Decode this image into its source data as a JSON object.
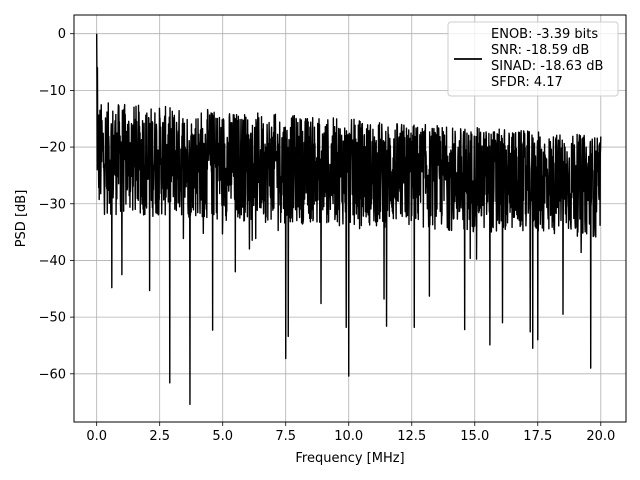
{
  "chart_data": {
    "type": "line",
    "title": "",
    "xlabel": "Frequency [MHz]",
    "ylabel": "PSD [dB]",
    "xlim": [
      -0.9,
      21.0
    ],
    "ylim": [
      -68.5,
      3.3
    ],
    "xticks": [
      0.0,
      2.5,
      5.0,
      7.5,
      10.0,
      12.5,
      15.0,
      17.5,
      20.0
    ],
    "xtick_labels": [
      "0.0",
      "2.5",
      "5.0",
      "7.5",
      "10.0",
      "12.5",
      "15.0",
      "17.5",
      "20.0"
    ],
    "yticks": [
      0,
      -10,
      -20,
      -30,
      -40,
      -50,
      -60
    ],
    "ytick_labels": [
      "0",
      "−10",
      "−20",
      "−30",
      "−40",
      "−50",
      "−60"
    ],
    "grid": true,
    "legend_position": "top-right",
    "series": [
      {
        "name": "ENOB: -3.39 bits\nSNR: -18.59 dB\nSINAD: -18.63 dB\nSFDR: 4.17",
        "color": "#000000",
        "approximate_shape": {
          "x_start": 0.0,
          "x_end": 20.0,
          "peak": {
            "x": 0.0,
            "y": 0.0
          },
          "upper_envelope": {
            "start_y": -12,
            "end_y": -18
          },
          "band_center": {
            "start_y": -22,
            "end_y": -26
          },
          "lower_envelope": {
            "start_y": -32,
            "end_y": -36
          },
          "deep_notches": [
            {
              "x": 0.6,
              "y": -44.8
            },
            {
              "x": 1.0,
              "y": -42.5
            },
            {
              "x": 2.1,
              "y": -45.3
            },
            {
              "x": 2.9,
              "y": -61.6
            },
            {
              "x": 3.7,
              "y": -65.4
            },
            {
              "x": 4.6,
              "y": -52.3
            },
            {
              "x": 5.5,
              "y": -42.0
            },
            {
              "x": 7.5,
              "y": -57.3
            },
            {
              "x": 7.6,
              "y": -53.4
            },
            {
              "x": 8.9,
              "y": -47.6
            },
            {
              "x": 9.9,
              "y": -51.8
            },
            {
              "x": 10.0,
              "y": -60.4
            },
            {
              "x": 11.4,
              "y": -46.8
            },
            {
              "x": 11.5,
              "y": -51.6
            },
            {
              "x": 12.6,
              "y": -51.8
            },
            {
              "x": 13.2,
              "y": -46.3
            },
            {
              "x": 14.6,
              "y": -52.2
            },
            {
              "x": 15.6,
              "y": -54.9
            },
            {
              "x": 16.1,
              "y": -51.0
            },
            {
              "x": 17.2,
              "y": -52.6
            },
            {
              "x": 17.3,
              "y": -55.5
            },
            {
              "x": 17.5,
              "y": -54.0
            },
            {
              "x": 18.5,
              "y": -49.5
            },
            {
              "x": 19.6,
              "y": -59.0
            }
          ]
        }
      }
    ]
  }
}
